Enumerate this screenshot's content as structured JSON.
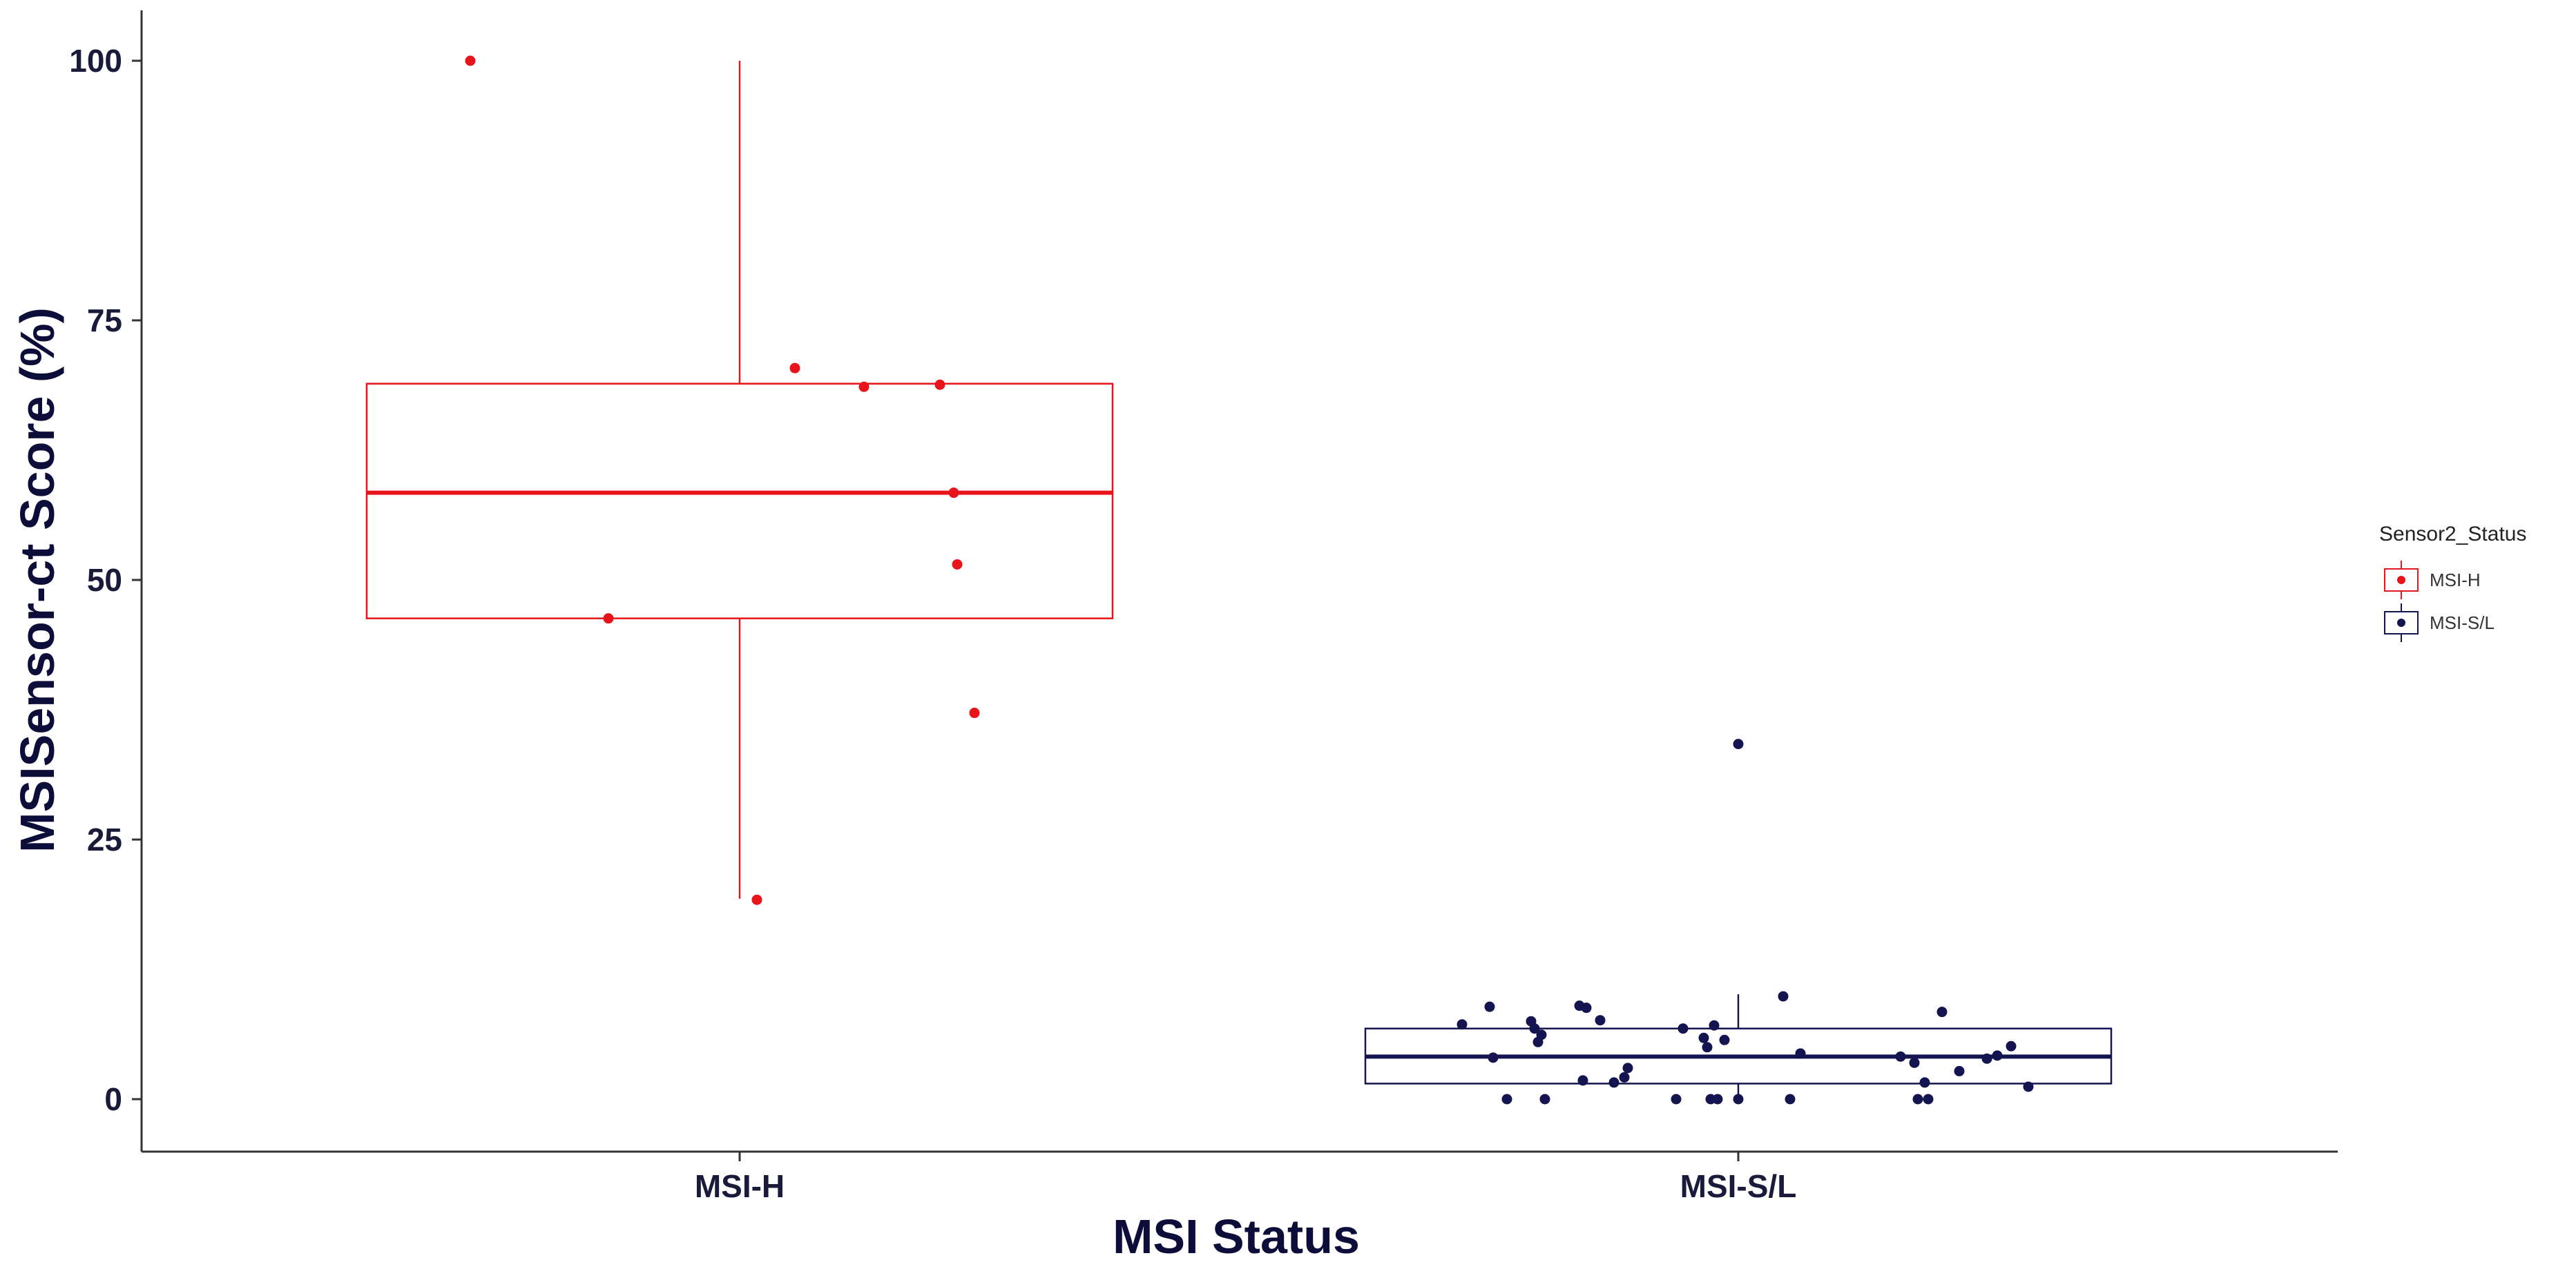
{
  "chart_data": {
    "type": "box",
    "title": "",
    "xlabel": "MSI Status",
    "ylabel": "MSISensor-ct Score (%)",
    "categories": [
      "MSI-H",
      "MSI-S/L"
    ],
    "ylim": [
      -5,
      105
    ],
    "yticks": [
      0,
      25,
      50,
      75,
      100
    ],
    "grid": false,
    "legend": {
      "title": "Sensor2_Status",
      "placement": "right",
      "entries": [
        {
          "label": "MSI-H",
          "color": "#e8141c"
        },
        {
          "label": "MSI-S/L",
          "color": "#141450"
        }
      ]
    },
    "series": [
      {
        "name": "MSI-H",
        "category": "MSI-H",
        "color": "#e8141c",
        "box": {
          "whisker_low": 19.3,
          "q1": 46.3,
          "median": 58.4,
          "q3": 68.9,
          "whisker_high": 100
        },
        "points": [
          {
            "x": -0.39,
            "y": 100
          },
          {
            "x": -0.19,
            "y": 46.3
          },
          {
            "x": 0.025,
            "y": 19.2
          },
          {
            "x": 0.08,
            "y": 70.4
          },
          {
            "x": 0.18,
            "y": 68.6
          },
          {
            "x": 0.29,
            "y": 68.8
          },
          {
            "x": 0.31,
            "y": 58.4
          },
          {
            "x": 0.315,
            "y": 51.5
          },
          {
            "x": 0.34,
            "y": 37.2
          }
        ]
      },
      {
        "name": "MSI-S/L",
        "category": "MSI-S/L",
        "color": "#141450",
        "box": {
          "whisker_low": 0,
          "q1": 1.5,
          "median": 4.1,
          "q3": 6.8,
          "whisker_high": 10.1
        },
        "points": [
          {
            "x": -0.4,
            "y": 7.2
          },
          {
            "x": -0.36,
            "y": 8.9
          },
          {
            "x": -0.355,
            "y": 4.0
          },
          {
            "x": -0.335,
            "y": 0.0
          },
          {
            "x": -0.3,
            "y": 7.5
          },
          {
            "x": -0.295,
            "y": 6.8
          },
          {
            "x": -0.29,
            "y": 5.5
          },
          {
            "x": -0.285,
            "y": 6.2
          },
          {
            "x": -0.28,
            "y": 0.0
          },
          {
            "x": -0.23,
            "y": 9.0
          },
          {
            "x": -0.225,
            "y": 1.8
          },
          {
            "x": -0.22,
            "y": 8.8
          },
          {
            "x": -0.2,
            "y": 7.6
          },
          {
            "x": -0.18,
            "y": 1.6
          },
          {
            "x": -0.165,
            "y": 2.1
          },
          {
            "x": -0.16,
            "y": 3.0
          },
          {
            "x": -0.09,
            "y": 0.0
          },
          {
            "x": -0.08,
            "y": 6.8
          },
          {
            "x": -0.05,
            "y": 5.9
          },
          {
            "x": -0.045,
            "y": 5.0
          },
          {
            "x": -0.04,
            "y": 0.0
          },
          {
            "x": -0.035,
            "y": 7.1
          },
          {
            "x": -0.03,
            "y": 0.0
          },
          {
            "x": -0.02,
            "y": 5.7
          },
          {
            "x": 0.0,
            "y": 0.0
          },
          {
            "x": 0.0,
            "y": 34.2
          },
          {
            "x": 0.065,
            "y": 9.9
          },
          {
            "x": 0.075,
            "y": 0.0
          },
          {
            "x": 0.09,
            "y": 4.4
          },
          {
            "x": 0.235,
            "y": 4.1
          },
          {
            "x": 0.255,
            "y": 3.5
          },
          {
            "x": 0.26,
            "y": 0.0
          },
          {
            "x": 0.27,
            "y": 1.6
          },
          {
            "x": 0.275,
            "y": 0.0
          },
          {
            "x": 0.295,
            "y": 8.4
          },
          {
            "x": 0.32,
            "y": 2.7
          },
          {
            "x": 0.36,
            "y": 3.9
          },
          {
            "x": 0.375,
            "y": 4.2
          },
          {
            "x": 0.395,
            "y": 5.1
          },
          {
            "x": 0.42,
            "y": 1.2
          }
        ]
      }
    ]
  }
}
